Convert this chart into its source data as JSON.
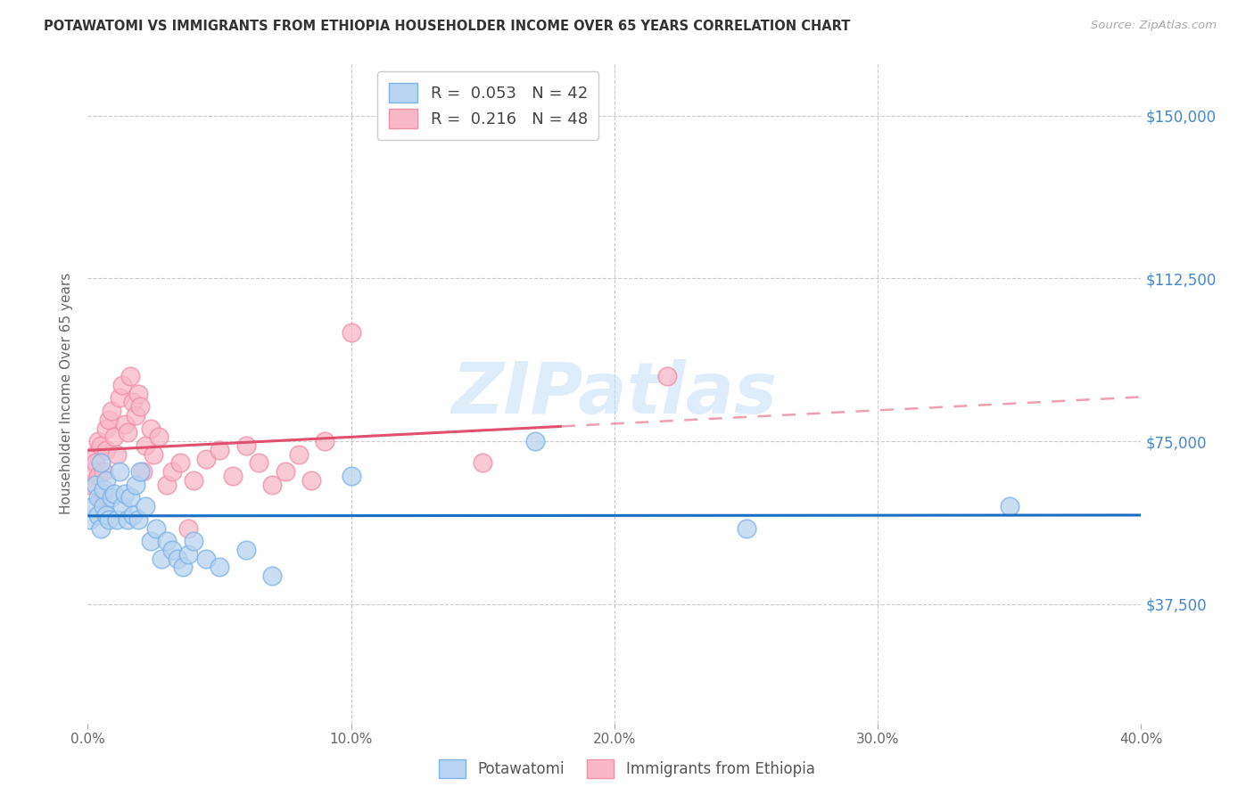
{
  "title": "POTAWATOMI VS IMMIGRANTS FROM ETHIOPIA HOUSEHOLDER INCOME OVER 65 YEARS CORRELATION CHART",
  "source": "Source: ZipAtlas.com",
  "ylabel_label": "Householder Income Over 65 years",
  "xmin": 0.0,
  "xmax": 0.4,
  "ymin": 10000,
  "ymax": 162000,
  "yticks": [
    37500,
    75000,
    112500,
    150000
  ],
  "ytick_labels": [
    "$37,500",
    "$75,000",
    "$112,500",
    "$150,000"
  ],
  "xticks": [
    0.0,
    0.1,
    0.2,
    0.3,
    0.4
  ],
  "xtick_labels": [
    "0.0%",
    "10.0%",
    "20.0%",
    "30.0%",
    "40.0%"
  ],
  "watermark": "ZIPatlas",
  "pota_color_fill": "#b8d4f0",
  "pota_color_edge": "#7eb3e8",
  "pota_line_color": "#1a6fc4",
  "eth_color_fill": "#f8b8c8",
  "eth_color_edge": "#f090a8",
  "eth_line_color": "#e05070",
  "pota_R": 0.053,
  "pota_N": 42,
  "eth_R": 0.216,
  "eth_N": 48,
  "pota_x": [
    0.001,
    0.002,
    0.003,
    0.004,
    0.004,
    0.005,
    0.005,
    0.006,
    0.006,
    0.007,
    0.007,
    0.008,
    0.009,
    0.01,
    0.011,
    0.012,
    0.013,
    0.014,
    0.015,
    0.016,
    0.017,
    0.018,
    0.019,
    0.02,
    0.022,
    0.024,
    0.026,
    0.028,
    0.03,
    0.032,
    0.034,
    0.036,
    0.038,
    0.04,
    0.045,
    0.05,
    0.06,
    0.07,
    0.1,
    0.17,
    0.25,
    0.35
  ],
  "pota_y": [
    57000,
    60000,
    65000,
    58000,
    62000,
    55000,
    70000,
    60000,
    64000,
    58000,
    66000,
    57000,
    62000,
    63000,
    57000,
    68000,
    60000,
    63000,
    57000,
    62000,
    58000,
    65000,
    57000,
    68000,
    60000,
    52000,
    55000,
    48000,
    52000,
    50000,
    48000,
    46000,
    49000,
    52000,
    48000,
    46000,
    50000,
    44000,
    67000,
    75000,
    55000,
    60000
  ],
  "eth_x": [
    0.001,
    0.002,
    0.003,
    0.003,
    0.004,
    0.004,
    0.005,
    0.005,
    0.006,
    0.006,
    0.007,
    0.007,
    0.008,
    0.009,
    0.01,
    0.011,
    0.012,
    0.013,
    0.014,
    0.015,
    0.016,
    0.017,
    0.018,
    0.019,
    0.02,
    0.021,
    0.022,
    0.024,
    0.025,
    0.027,
    0.03,
    0.032,
    0.035,
    0.038,
    0.04,
    0.045,
    0.05,
    0.055,
    0.06,
    0.065,
    0.07,
    0.075,
    0.08,
    0.085,
    0.09,
    0.1,
    0.15,
    0.22
  ],
  "eth_y": [
    65000,
    68000,
    72000,
    70000,
    75000,
    67000,
    62000,
    74000,
    68000,
    63000,
    78000,
    73000,
    80000,
    82000,
    76000,
    72000,
    85000,
    88000,
    79000,
    77000,
    90000,
    84000,
    81000,
    86000,
    83000,
    68000,
    74000,
    78000,
    72000,
    76000,
    65000,
    68000,
    70000,
    55000,
    66000,
    71000,
    73000,
    67000,
    74000,
    70000,
    65000,
    68000,
    72000,
    66000,
    75000,
    100000,
    70000,
    90000
  ]
}
